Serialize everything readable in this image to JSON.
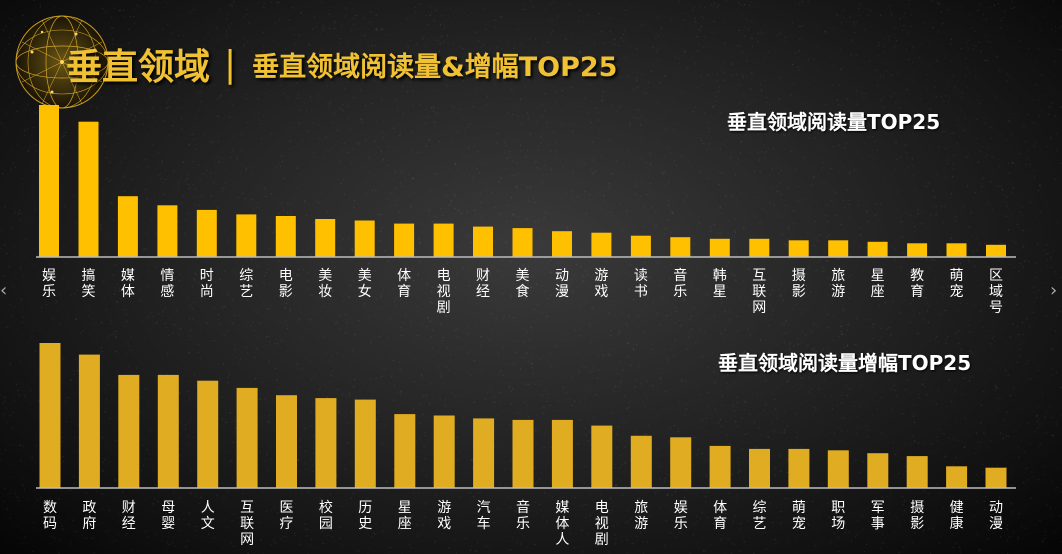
{
  "header": {
    "main_title": "垂直领域",
    "separator": "|",
    "subtitle": "垂直领域阅读量&增幅TOP25"
  },
  "nav": {
    "prev_icon": "chevron-left-icon",
    "next_icon": "chevron-right-icon"
  },
  "colors": {
    "bar_top": "#ffc000",
    "bar_bottom": "#dfac22",
    "title_gold": "#f0c133",
    "label": "#ffffff"
  },
  "chart_data": [
    {
      "type": "bar",
      "title": "垂直领域阅读量TOP25",
      "categories": [
        "娱乐",
        "搞笑",
        "媒体",
        "情感",
        "时尚",
        "综艺",
        "电影",
        "美妆",
        "美女",
        "体育",
        "电视剧",
        "财经",
        "美食",
        "动漫",
        "游戏",
        "读书",
        "音乐",
        "韩星",
        "互联网",
        "摄影",
        "旅游",
        "星座",
        "教育",
        "萌宠",
        "区域号"
      ],
      "values": [
        100,
        89,
        40,
        34,
        31,
        28,
        27,
        25,
        24,
        22,
        22,
        20,
        19,
        17,
        16,
        14,
        13,
        12,
        12,
        11,
        11,
        10,
        9,
        9,
        8
      ],
      "ylim": [
        0,
        100
      ],
      "grid": false,
      "legend": "none"
    },
    {
      "type": "bar",
      "title": "垂直领域阅读量增幅TOP25",
      "categories": [
        "数码",
        "政府",
        "财经",
        "母婴",
        "人文",
        "互联网",
        "医疗",
        "校园",
        "历史",
        "星座",
        "游戏",
        "汽车",
        "音乐",
        "媒体人",
        "电视剧",
        "旅游",
        "娱乐",
        "体育",
        "综艺",
        "萌宠",
        "职场",
        "军事",
        "摄影",
        "健康",
        "动漫"
      ],
      "values": [
        100,
        92,
        78,
        78,
        74,
        69,
        64,
        62,
        61,
        51,
        50,
        48,
        47,
        47,
        43,
        36,
        35,
        29,
        27,
        27,
        26,
        24,
        22,
        15,
        14
      ],
      "ylim": [
        0,
        100
      ],
      "grid": false,
      "legend": "none"
    }
  ]
}
